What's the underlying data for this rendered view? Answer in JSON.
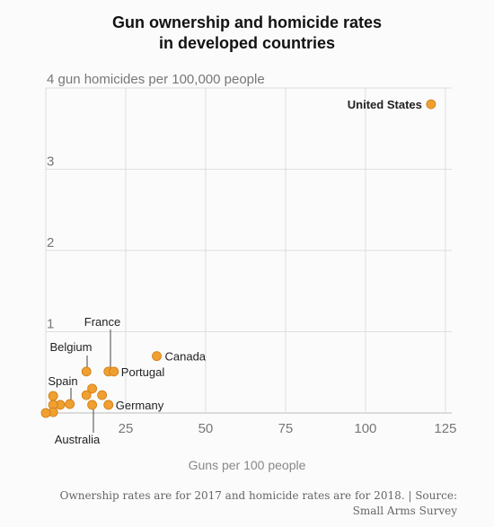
{
  "chart_data": {
    "type": "scatter",
    "title_lines": [
      "Gun ownership and homicide rates",
      "in developed countries"
    ],
    "ylabel": "4 gun homicides per 100,000 people",
    "xlabel": "Guns per 100 people",
    "xlim": [
      0,
      127
    ],
    "ylim": [
      0,
      4
    ],
    "xticks": [
      25,
      50,
      75,
      100,
      125
    ],
    "xtick_labels": [
      "25",
      "50",
      "75",
      "100",
      "125"
    ],
    "yticks": [
      1,
      2,
      3
    ],
    "ytick_labels": [
      "1",
      "2",
      "3"
    ],
    "grid": true,
    "point_color": "#f0a030",
    "point_stroke": "#d07a10",
    "points": [
      {
        "x": 120.5,
        "y": 3.8,
        "label": "United States"
      },
      {
        "x": 34.7,
        "y": 0.7,
        "label": "Canada"
      },
      {
        "x": 19.6,
        "y": 0.51,
        "label": "France"
      },
      {
        "x": 21.3,
        "y": 0.51,
        "label": "Portugal"
      },
      {
        "x": 12.7,
        "y": 0.51,
        "label": "Belgium"
      },
      {
        "x": 19.6,
        "y": 0.1,
        "label": "Germany"
      },
      {
        "x": 7.5,
        "y": 0.11,
        "label": "Spain"
      },
      {
        "x": 14.5,
        "y": 0.1,
        "label": "Australia"
      },
      {
        "x": 14.5,
        "y": 0.3,
        "label": ""
      },
      {
        "x": 12.7,
        "y": 0.22,
        "label": ""
      },
      {
        "x": 17.6,
        "y": 0.22,
        "label": ""
      },
      {
        "x": 4.5,
        "y": 0.1,
        "label": ""
      },
      {
        "x": 2.3,
        "y": 0.1,
        "label": ""
      },
      {
        "x": 2.3,
        "y": 0.21,
        "label": ""
      },
      {
        "x": 2.3,
        "y": 0.01,
        "label": ""
      },
      {
        "x": 0,
        "y": 0.0,
        "label": ""
      }
    ]
  },
  "footnote": "Ownership rates are for 2017 and homicide rates are for 2018. | Source: Small Arms Survey"
}
